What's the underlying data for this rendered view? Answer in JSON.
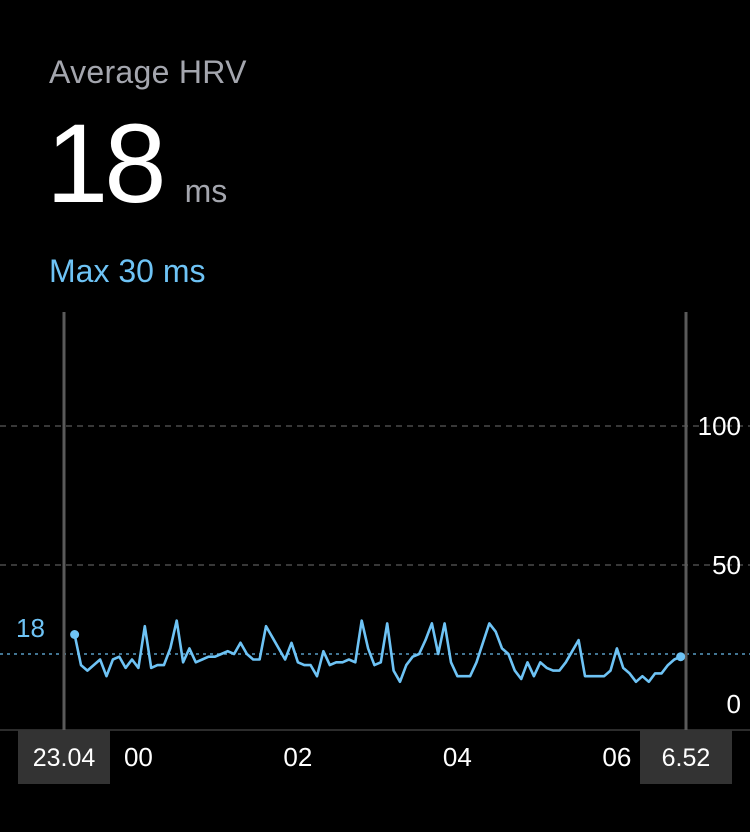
{
  "header": {
    "title": "Average HRV",
    "value": "18",
    "unit": "ms",
    "max_label": "Max 30 ms"
  },
  "colors": {
    "accent": "#6ec3f5",
    "muted": "#a4a6ae",
    "grid": "#4a4a4a",
    "cursor": "#5a5a5a",
    "label_box": "#333333"
  },
  "chart_data": {
    "type": "line",
    "xlabel": "",
    "ylabel": "",
    "ylim": [
      0,
      130
    ],
    "y_ticks": [
      {
        "value": 100,
        "label": "100"
      },
      {
        "value": 50,
        "label": "50"
      },
      {
        "value": 0,
        "label": "0"
      }
    ],
    "x_ticks": [
      {
        "hour": 0,
        "label": "00"
      },
      {
        "hour": 2,
        "label": "02"
      },
      {
        "hour": 4,
        "label": "04"
      },
      {
        "hour": 6,
        "label": "06"
      }
    ],
    "start_label": "23.04",
    "end_label": "6.52",
    "start_hour": -0.933,
    "end_hour": 6.867,
    "average": 18,
    "average_label": "18",
    "grid": "dashed",
    "series": [
      {
        "x": [
          -0.8,
          -0.72,
          -0.64,
          -0.56,
          -0.48,
          -0.4,
          -0.32,
          -0.24,
          -0.16,
          -0.08,
          0,
          0.08,
          0.16,
          0.24,
          0.32,
          0.4,
          0.48,
          0.56,
          0.64,
          0.72,
          0.8,
          0.88,
          0.96,
          1.04,
          1.12,
          1.2,
          1.28,
          1.36,
          1.44,
          1.52,
          1.6,
          1.68,
          1.76,
          1.84,
          1.92,
          2,
          2.08,
          2.16,
          2.24,
          2.32,
          2.4,
          2.48,
          2.56,
          2.64,
          2.72,
          2.8,
          2.88,
          2.96,
          3.04,
          3.12,
          3.2,
          3.28,
          3.36,
          3.44,
          3.52,
          3.6,
          3.68,
          3.76,
          3.84,
          3.92,
          4,
          4.08,
          4.16,
          4.24,
          4.32,
          4.4,
          4.48,
          4.56,
          4.64,
          4.72,
          4.8,
          4.88,
          4.96,
          5.04,
          5.12,
          5.2,
          5.28,
          5.36,
          5.44,
          5.52,
          5.6,
          5.68,
          5.76,
          5.84,
          5.92,
          6,
          6.08,
          6.16,
          6.24,
          6.32,
          6.4,
          6.48,
          6.56,
          6.64,
          6.72,
          6.8
        ],
        "values": [
          25,
          14,
          12,
          14,
          16,
          10,
          16,
          17,
          13,
          16,
          13,
          28,
          13,
          14,
          14,
          20,
          30,
          15,
          20,
          15,
          16,
          17,
          17,
          18,
          19,
          18,
          22,
          18,
          16,
          16,
          28,
          24,
          20,
          16,
          22,
          15,
          14,
          14,
          10,
          19,
          14,
          15,
          15,
          16,
          15,
          30,
          20,
          14,
          15,
          29,
          12,
          8,
          14,
          17,
          18,
          23,
          29,
          18,
          29,
          15,
          10,
          10,
          10,
          15,
          22,
          29,
          26,
          20,
          18,
          12,
          9,
          15,
          10,
          15,
          13,
          12,
          12,
          15,
          19,
          23,
          10,
          10,
          10,
          10,
          12,
          20,
          13,
          11,
          8,
          10,
          8,
          11,
          11,
          14,
          16,
          17
        ]
      }
    ]
  }
}
